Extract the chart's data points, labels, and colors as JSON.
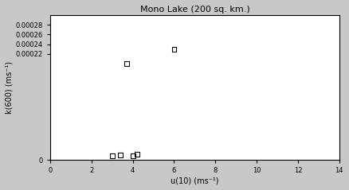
{
  "title": "Mono Lake (200 sq. km.)",
  "xlabel": "u(10) (ms⁻¹)",
  "ylabel": "k(600) (ms⁻¹)",
  "xlim": [
    0,
    14
  ],
  "ylim": [
    0,
    0.0003
  ],
  "xticks": [
    0,
    2,
    4,
    6,
    8,
    10,
    12,
    14
  ],
  "yticks": [
    0,
    0.00022,
    0.00024,
    0.00026,
    0.00028
  ],
  "data_x": [
    3.0,
    3.4,
    3.7,
    4.0,
    4.2,
    6.0
  ],
  "data_y": [
    8e-06,
    1e-05,
    0.0002,
    8e-06,
    1.2e-05,
    0.00023
  ],
  "marker": "s",
  "marker_facecolor": "none",
  "marker_edge_color": "#000000",
  "background_color": "#c8c8c8",
  "plot_bg_color": "#ffffff",
  "text_color": "#000000",
  "axis_color": "#000000",
  "title_fontsize": 8,
  "label_fontsize": 7,
  "tick_fontsize": 6
}
